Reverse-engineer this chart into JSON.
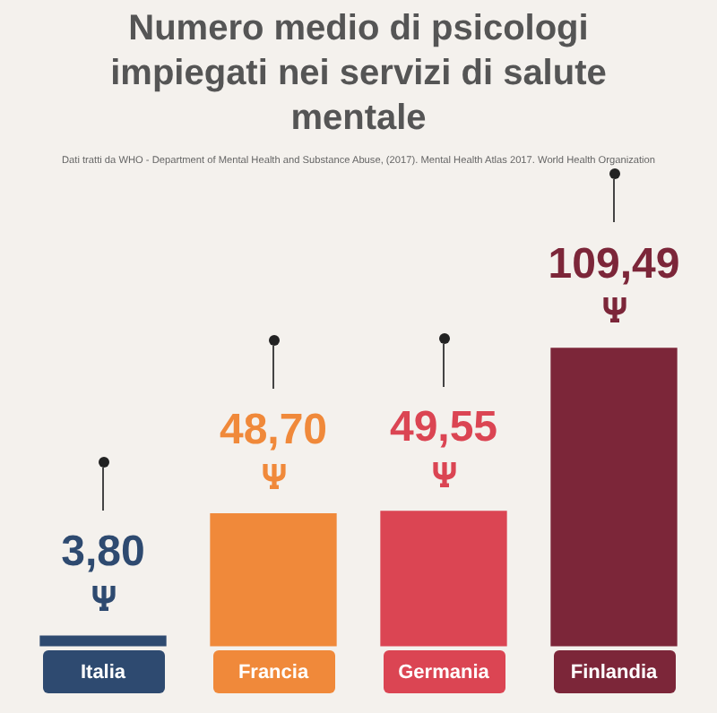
{
  "chart_data": {
    "type": "bar",
    "title": "Numero medio di psicologi impiegati nei servizi di salute mentale",
    "annotations": [
      "Dati tratti da WHO - Department of Mental Health and Substance Abuse, (2017). Mental Health Atlas 2017. World Health Organization"
    ],
    "categories": [
      "Italia",
      "Francia",
      "Germania",
      "Finlandia"
    ],
    "values": [
      3.8,
      48.7,
      49.55,
      109.49
    ],
    "colors": [
      "#2e4a70",
      "#f0893a",
      "#db4553",
      "#7c2639"
    ],
    "value_labels": [
      "3,80",
      "48,70",
      "49,55",
      "109,49"
    ],
    "grid": false,
    "legend": false
  }
}
